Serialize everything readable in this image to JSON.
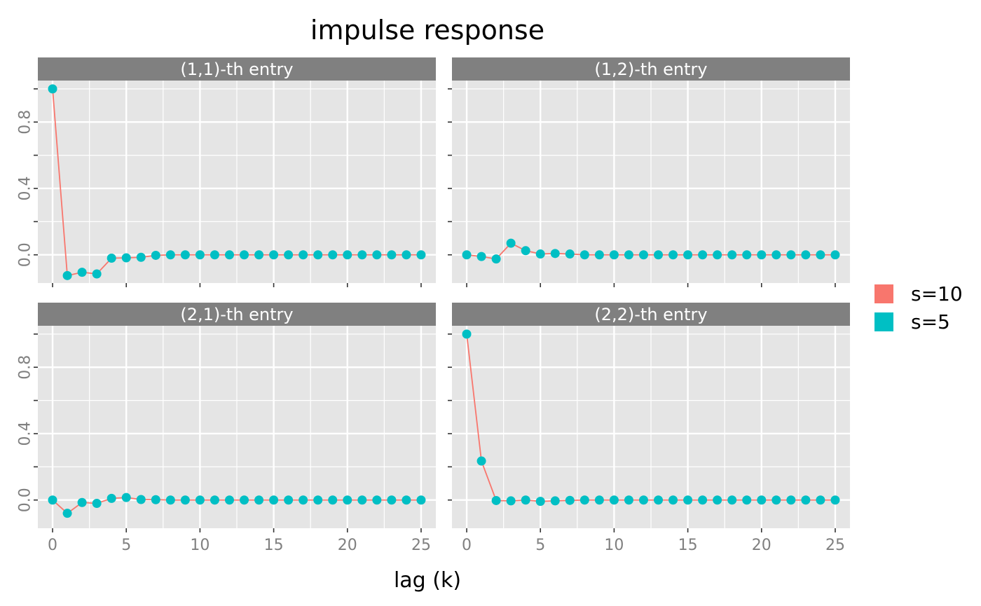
{
  "chart_data": {
    "type": "line",
    "title": "impulse response",
    "xlabel": "lag (k)",
    "ylabel": "",
    "xlim": [
      -1,
      26
    ],
    "ylim": [
      -0.17,
      1.05
    ],
    "x_ticks": [
      0,
      5,
      10,
      15,
      20,
      25
    ],
    "y_ticks": [
      0.0,
      0.4,
      0.8
    ],
    "y_tick_labels": [
      "0.0",
      "0.4",
      "0.8"
    ],
    "grid": true,
    "legend_position": "right",
    "colors": {
      "s10": "#F8766D",
      "s5": "#00BFC4",
      "panel_bg": "#E5E5E5",
      "strip_bg": "#808080",
      "grid": "#ffffff"
    },
    "legend": [
      {
        "key": "s10",
        "label": "s=10",
        "color": "#F8766D"
      },
      {
        "key": "s5",
        "label": "s=5",
        "color": "#00BFC4"
      }
    ],
    "x": [
      0,
      1,
      2,
      3,
      4,
      5,
      6,
      7,
      8,
      9,
      10,
      11,
      12,
      13,
      14,
      15,
      16,
      17,
      18,
      19,
      20,
      21,
      22,
      23,
      24,
      25
    ],
    "panels": [
      {
        "strip": "(1,1)-th entry",
        "series": [
          {
            "name": "s=10",
            "values": [
              1.0,
              -0.125,
              -0.105,
              -0.115,
              -0.02,
              -0.018,
              -0.015,
              -0.003,
              0,
              0,
              0,
              0,
              0,
              0,
              0,
              0,
              0,
              0,
              0,
              0,
              0,
              0,
              0,
              0,
              0,
              0
            ]
          },
          {
            "name": "s=5",
            "values": [
              1.0,
              -0.125,
              -0.105,
              -0.115,
              -0.02,
              -0.018,
              -0.015,
              -0.003,
              0,
              0,
              0,
              0,
              0,
              0,
              0,
              0,
              0,
              0,
              0,
              0,
              0,
              0,
              0,
              0,
              0,
              0
            ]
          }
        ]
      },
      {
        "strip": "(1,2)-th entry",
        "series": [
          {
            "name": "s=10",
            "values": [
              0.0,
              -0.01,
              -0.025,
              0.07,
              0.025,
              0.005,
              0.008,
              0.005,
              0,
              0,
              0,
              0,
              0,
              0,
              0,
              0,
              0,
              0,
              0,
              0,
              0,
              0,
              0,
              0,
              0,
              0
            ]
          },
          {
            "name": "s=5",
            "values": [
              0.0,
              -0.01,
              -0.025,
              0.07,
              0.025,
              0.005,
              0.008,
              0.005,
              0,
              0,
              0,
              0,
              0,
              0,
              0,
              0,
              0,
              0,
              0,
              0,
              0,
              0,
              0,
              0,
              0,
              0
            ]
          }
        ]
      },
      {
        "strip": "(2,1)-th entry",
        "series": [
          {
            "name": "s=10",
            "values": [
              0.0,
              -0.08,
              -0.015,
              -0.02,
              0.01,
              0.015,
              0.003,
              0.002,
              0,
              0,
              0,
              0,
              0,
              0,
              0,
              0,
              0,
              0,
              0,
              0,
              0,
              0,
              0,
              0,
              0,
              0
            ]
          },
          {
            "name": "s=5",
            "values": [
              0.0,
              -0.08,
              -0.015,
              -0.02,
              0.01,
              0.015,
              0.003,
              0.002,
              0,
              0,
              0,
              0,
              0,
              0,
              0,
              0,
              0,
              0,
              0,
              0,
              0,
              0,
              0,
              0,
              0,
              0
            ]
          }
        ]
      },
      {
        "strip": "(2,2)-th entry",
        "series": [
          {
            "name": "s=10",
            "values": [
              1.0,
              0.235,
              -0.003,
              -0.005,
              0.0,
              -0.008,
              -0.005,
              -0.002,
              0,
              0,
              0,
              0,
              0,
              0,
              0,
              0,
              0,
              0,
              0,
              0,
              0,
              0,
              0,
              0,
              0,
              0
            ]
          },
          {
            "name": "s=5",
            "values": [
              1.0,
              0.235,
              -0.003,
              -0.005,
              0.0,
              -0.008,
              -0.005,
              -0.002,
              0,
              0,
              0,
              0,
              0,
              0,
              0,
              0,
              0,
              0,
              0,
              0,
              0,
              0,
              0,
              0,
              0,
              0
            ]
          }
        ]
      }
    ]
  }
}
